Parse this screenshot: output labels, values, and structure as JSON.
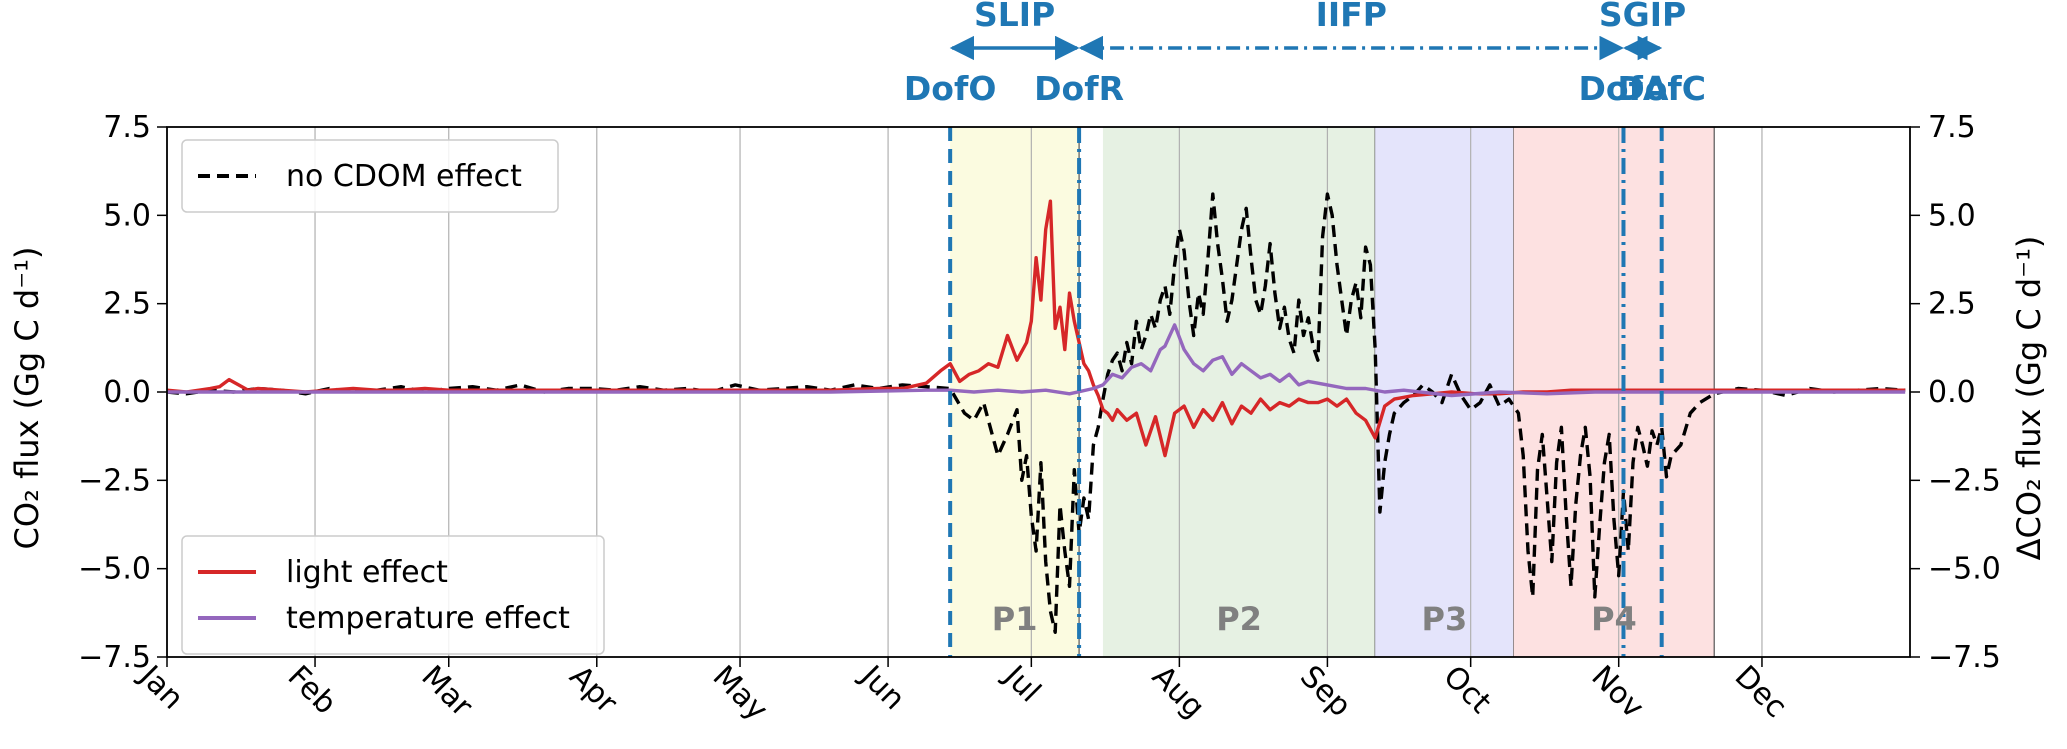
{
  "chart_data": {
    "type": "line",
    "title": "",
    "xlabel": "",
    "ylabel_left": "CO₂ flux (Gg C d⁻¹)",
    "ylabel_right": "ΔCO₂ flux (Gg C d⁻¹)",
    "ylim": [
      -7.5,
      7.5
    ],
    "y_ticks": [
      -7.5,
      -5.0,
      -2.5,
      0.0,
      2.5,
      5.0,
      7.5
    ],
    "y_tick_labels": [
      "−7.5",
      "−5.0",
      "−2.5",
      "0.0",
      "2.5",
      "5.0",
      "7.5"
    ],
    "xlim": [
      1,
      366
    ],
    "x_ticks": [
      {
        "day": 1,
        "label": "Jan"
      },
      {
        "day": 32,
        "label": "Feb"
      },
      {
        "day": 60,
        "label": "Mar"
      },
      {
        "day": 91,
        "label": "Apr"
      },
      {
        "day": 121,
        "label": "May"
      },
      {
        "day": 152,
        "label": "Jun"
      },
      {
        "day": 182,
        "label": "Jul"
      },
      {
        "day": 213,
        "label": "Aug"
      },
      {
        "day": 244,
        "label": "Sep"
      },
      {
        "day": 274,
        "label": "Oct"
      },
      {
        "day": 305,
        "label": "Nov"
      },
      {
        "day": 335,
        "label": "Dec"
      }
    ],
    "grid": "vertical",
    "shaded_periods": [
      {
        "label": "P1",
        "start": 165,
        "end": 192,
        "color": "#fbfbe0"
      },
      {
        "label": "P2",
        "start": 197,
        "end": 254,
        "color": "#e6f1e3"
      },
      {
        "label": "P3",
        "start": 254,
        "end": 283,
        "color": "#e4e4fb"
      },
      {
        "label": "P4",
        "start": 283,
        "end": 325,
        "color": "#fde1e1"
      }
    ],
    "event_lines": [
      {
        "label": "DofO",
        "day": 165,
        "style": "dashed"
      },
      {
        "label": "DofR",
        "day": 192,
        "style": "dashdot"
      },
      {
        "label": "DofA",
        "day": 306,
        "style": "dashdot"
      },
      {
        "label": "DofC",
        "day": 314,
        "style": "dashed"
      }
    ],
    "intervals": [
      {
        "label": "SLIP",
        "from": "DofO",
        "to": "DofR",
        "style": "solid"
      },
      {
        "label": "IIFP",
        "from": "DofR",
        "to": "DofA",
        "style": "dashdot"
      },
      {
        "label": "SGIP",
        "from": "DofA",
        "to": "DofC",
        "style": "solid"
      }
    ],
    "legend": [
      {
        "label": "no CDOM effect",
        "placement": "top-left"
      },
      {
        "label": "light effect",
        "placement": "bottom-left"
      },
      {
        "label": "temperature effect",
        "placement": "bottom-left"
      }
    ],
    "series": [
      {
        "name": "no CDOM effect",
        "color": "#000000",
        "style": "dashed",
        "x": [
          1,
          5,
          10,
          15,
          20,
          25,
          30,
          35,
          40,
          45,
          50,
          55,
          60,
          65,
          70,
          75,
          80,
          85,
          90,
          95,
          100,
          105,
          110,
          115,
          120,
          125,
          130,
          135,
          140,
          145,
          150,
          155,
          160,
          165,
          168,
          170,
          172,
          175,
          177,
          179,
          180,
          181,
          182,
          183,
          184,
          185,
          186,
          187,
          188,
          189,
          190,
          191,
          192,
          193,
          194,
          195,
          196,
          197,
          198,
          199,
          200,
          201,
          202,
          203,
          204,
          205,
          206,
          207,
          208,
          209,
          210,
          211,
          212,
          213,
          214,
          215,
          216,
          217,
          218,
          219,
          220,
          221,
          222,
          223,
          224,
          225,
          226,
          227,
          228,
          229,
          230,
          231,
          232,
          233,
          234,
          235,
          236,
          237,
          238,
          239,
          240,
          241,
          242,
          243,
          244,
          245,
          246,
          247,
          248,
          249,
          250,
          251,
          252,
          253,
          254,
          255,
          256,
          257,
          258,
          260,
          262,
          264,
          266,
          268,
          270,
          272,
          274,
          276,
          278,
          280,
          282,
          284,
          285,
          286,
          287,
          288,
          289,
          290,
          291,
          292,
          293,
          294,
          295,
          296,
          297,
          298,
          299,
          300,
          301,
          302,
          303,
          304,
          305,
          306,
          307,
          308,
          309,
          310,
          311,
          312,
          313,
          314,
          315,
          316,
          318,
          320,
          322,
          325,
          330,
          335,
          340,
          345,
          350,
          355,
          360,
          365
        ],
        "values": [
          0.0,
          -0.05,
          0.05,
          0.0,
          0.1,
          0.05,
          -0.05,
          0.1,
          0.0,
          0.05,
          0.15,
          0.0,
          0.1,
          0.15,
          0.05,
          0.2,
          0.0,
          0.1,
          0.1,
          0.05,
          0.15,
          0.05,
          0.1,
          0.0,
          0.2,
          0.05,
          0.1,
          0.15,
          0.05,
          0.2,
          0.1,
          0.2,
          0.15,
          0.1,
          -0.6,
          -0.8,
          -0.3,
          -1.8,
          -1.2,
          -0.5,
          -2.5,
          -1.8,
          -3.5,
          -4.5,
          -2.0,
          -4.8,
          -6.2,
          -6.8,
          -3.2,
          -4.5,
          -5.5,
          -2.2,
          -4.0,
          -3.0,
          -3.6,
          -1.5,
          -1.0,
          -0.2,
          0.5,
          0.9,
          1.1,
          0.6,
          1.4,
          0.8,
          2.0,
          1.2,
          1.6,
          2.2,
          1.8,
          2.6,
          3.0,
          2.2,
          3.6,
          4.6,
          4.0,
          2.6,
          1.6,
          2.8,
          2.2,
          3.8,
          5.6,
          4.2,
          3.2,
          2.0,
          2.6,
          3.6,
          4.6,
          5.2,
          3.8,
          2.6,
          2.2,
          3.0,
          4.2,
          2.8,
          1.8,
          2.4,
          1.5,
          1.1,
          2.6,
          1.6,
          2.1,
          1.3,
          0.9,
          4.4,
          5.6,
          5.0,
          3.6,
          2.6,
          1.6,
          2.6,
          3.1,
          2.1,
          4.1,
          3.6,
          1.2,
          -3.4,
          -2.0,
          -1.2,
          -0.6,
          -0.3,
          -0.1,
          0.2,
          0.0,
          -0.3,
          0.5,
          -0.1,
          -0.5,
          -0.3,
          0.2,
          -0.4,
          -0.2,
          -0.6,
          -1.8,
          -4.5,
          -5.8,
          -2.2,
          -1.2,
          -3.0,
          -4.8,
          -2.0,
          -1.0,
          -3.5,
          -5.5,
          -3.2,
          -1.8,
          -1.0,
          -2.4,
          -5.8,
          -3.8,
          -2.0,
          -1.2,
          -3.6,
          -5.2,
          -2.8,
          -4.5,
          -2.0,
          -1.0,
          -1.5,
          -2.1,
          -1.1,
          -1.5,
          -1.0,
          -2.4,
          -1.8,
          -1.5,
          -0.6,
          -0.3,
          -0.05,
          0.1,
          0.05,
          -0.1,
          0.1,
          0.0,
          0.05,
          0.1,
          0.05
        ]
      },
      {
        "name": "light effect",
        "color": "#d62728",
        "style": "solid",
        "x": [
          1,
          5,
          10,
          12,
          14,
          16,
          18,
          20,
          25,
          30,
          35,
          40,
          45,
          50,
          55,
          60,
          70,
          80,
          90,
          100,
          110,
          120,
          130,
          140,
          150,
          155,
          160,
          163,
          165,
          167,
          169,
          171,
          173,
          175,
          177,
          179,
          181,
          182,
          183,
          184,
          185,
          186,
          187,
          188,
          189,
          190,
          191,
          192,
          193,
          194,
          195,
          196,
          197,
          198,
          199,
          200,
          202,
          204,
          206,
          208,
          210,
          212,
          214,
          216,
          218,
          220,
          222,
          224,
          226,
          228,
          230,
          232,
          234,
          236,
          238,
          240,
          242,
          244,
          246,
          248,
          250,
          252,
          254,
          256,
          258,
          262,
          266,
          270,
          275,
          280,
          285,
          290,
          295,
          300,
          310,
          320,
          330,
          340,
          350,
          365
        ],
        "values": [
          0.05,
          0.0,
          0.1,
          0.15,
          0.35,
          0.2,
          0.05,
          0.1,
          0.05,
          0.0,
          0.05,
          0.1,
          0.05,
          0.05,
          0.1,
          0.05,
          0.05,
          0.05,
          0.05,
          0.05,
          0.05,
          0.05,
          0.05,
          0.05,
          0.1,
          0.1,
          0.25,
          0.6,
          0.8,
          0.3,
          0.5,
          0.6,
          0.8,
          0.7,
          1.6,
          0.9,
          1.4,
          2.0,
          3.8,
          2.6,
          4.6,
          5.4,
          1.8,
          2.4,
          1.2,
          2.8,
          2.0,
          1.4,
          0.8,
          0.6,
          0.2,
          -0.1,
          -0.5,
          -0.6,
          -0.8,
          -0.5,
          -0.8,
          -0.6,
          -1.5,
          -0.7,
          -1.8,
          -0.6,
          -0.4,
          -1.0,
          -0.5,
          -0.8,
          -0.3,
          -0.9,
          -0.4,
          -0.6,
          -0.2,
          -0.5,
          -0.3,
          -0.4,
          -0.2,
          -0.3,
          -0.3,
          -0.2,
          -0.4,
          -0.2,
          -0.6,
          -0.8,
          -1.3,
          -0.4,
          -0.2,
          -0.1,
          -0.05,
          0.0,
          -0.05,
          -0.05,
          0.0,
          0.0,
          0.05,
          0.05,
          0.05,
          0.05,
          0.05,
          0.05,
          0.05,
          0.05
        ]
      },
      {
        "name": "temperature effect",
        "color": "#9467bd",
        "style": "solid",
        "x": [
          1,
          20,
          40,
          60,
          80,
          100,
          120,
          140,
          160,
          165,
          170,
          175,
          180,
          185,
          190,
          195,
          197,
          199,
          201,
          203,
          205,
          207,
          209,
          210,
          212,
          214,
          216,
          218,
          220,
          222,
          224,
          226,
          228,
          230,
          232,
          234,
          236,
          238,
          240,
          244,
          248,
          252,
          256,
          260,
          270,
          280,
          290,
          300,
          310,
          320,
          330,
          340,
          350,
          365
        ],
        "values": [
          0.0,
          0.0,
          0.0,
          0.0,
          0.0,
          0.0,
          0.0,
          0.0,
          0.05,
          0.05,
          0.0,
          0.05,
          0.0,
          0.05,
          -0.05,
          0.1,
          0.2,
          0.5,
          0.4,
          0.7,
          0.8,
          0.6,
          1.2,
          1.3,
          1.9,
          1.2,
          0.8,
          0.6,
          0.9,
          1.0,
          0.5,
          0.8,
          0.6,
          0.4,
          0.5,
          0.3,
          0.5,
          0.2,
          0.3,
          0.2,
          0.1,
          0.1,
          0.0,
          0.05,
          -0.1,
          0.0,
          -0.05,
          0.0,
          0.0,
          0.0,
          0.0,
          0.0,
          0.0,
          0.0
        ]
      }
    ]
  }
}
